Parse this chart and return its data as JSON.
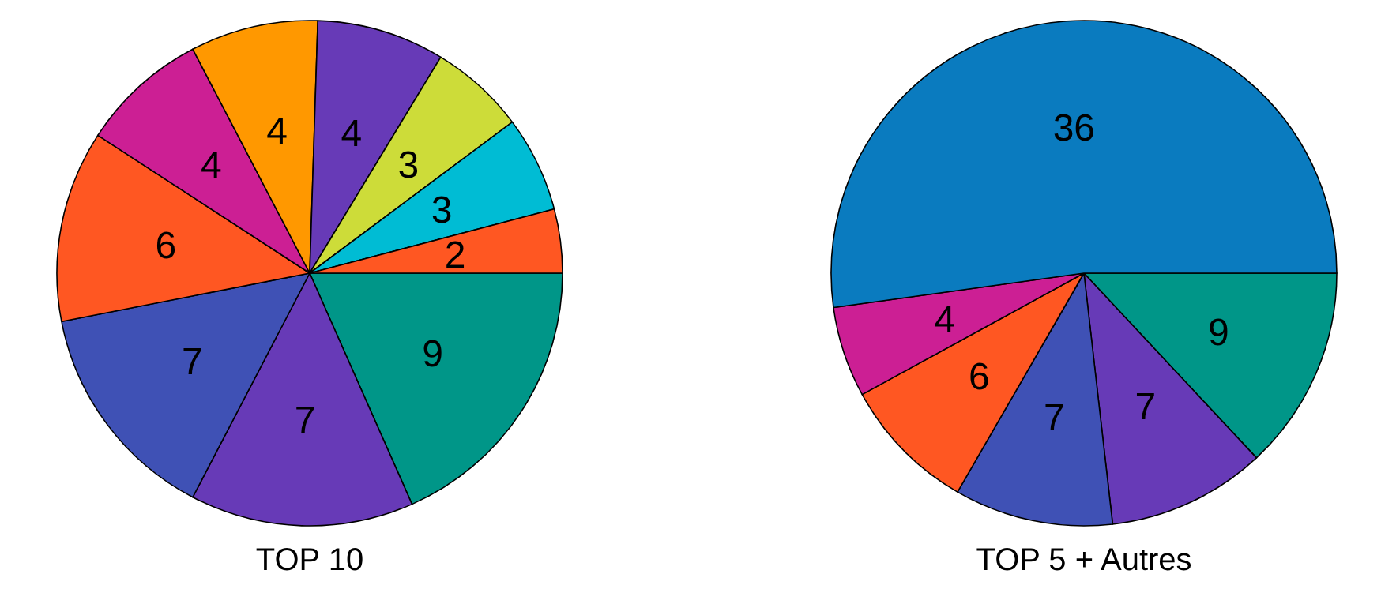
{
  "chart_data": [
    {
      "type": "pie",
      "title": "TOP 10",
      "categories": [
        null,
        null,
        null,
        null,
        null,
        null,
        null,
        null,
        null,
        null
      ],
      "values": [
        9,
        7,
        7,
        6,
        4,
        4,
        4,
        3,
        3,
        2
      ],
      "colors": [
        "#009688",
        "#673ab7",
        "#3f51b5",
        "#ff5722",
        "#cc1f94",
        "#ff9800",
        "#673ab7",
        "#cddc39",
        "#00bcd4",
        "#ff5722"
      ],
      "data_labels": true
    },
    {
      "type": "pie",
      "title": "TOP 5 + Autres",
      "categories": [
        null,
        null,
        null,
        null,
        null,
        null
      ],
      "values": [
        9,
        7,
        7,
        6,
        4,
        36
      ],
      "colors": [
        "#009688",
        "#673ab7",
        "#3f51b5",
        "#ff5722",
        "#cc1f94",
        "#0a7bbf"
      ],
      "data_labels": true
    }
  ]
}
